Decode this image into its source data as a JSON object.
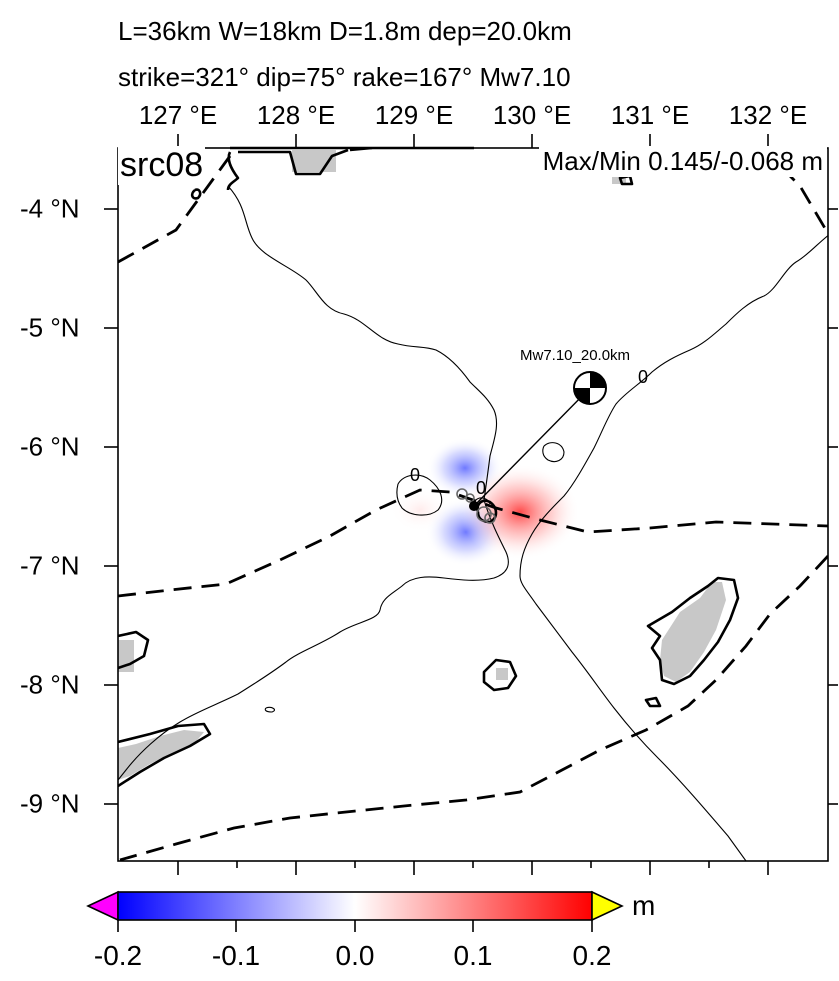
{
  "header": {
    "line1": "L=36km W=18km D=1.8m dep=20.0km",
    "line2": "strike=321° dip=75° rake=167° Mw7.10"
  },
  "panel": {
    "label": "src08",
    "maxmin": "Max/Min 0.145/-0.068 m"
  },
  "axes": {
    "lon_labels": [
      "127 °E",
      "128 °E",
      "129 °E",
      "130 °E",
      "131 °E",
      "132 °E"
    ],
    "lat_labels": [
      "-4 °N",
      "-5 °N",
      "-6 °N",
      "-7 °N",
      "-8 °N",
      "-9 °N"
    ]
  },
  "map": {
    "beachball_label": "Mw7.10_20.0km",
    "contour_labels": [
      "0",
      "0",
      "0"
    ],
    "colors": {
      "positive": "#ff0000",
      "negative": "#0000ff",
      "land": "#c8c8c8"
    }
  },
  "colorbar": {
    "ticks": [
      "-0.2",
      "-0.1",
      "0.0",
      "0.1",
      "0.2"
    ],
    "unit": "m",
    "under_color": "#ff00ff",
    "over_color": "#ffff00"
  }
}
